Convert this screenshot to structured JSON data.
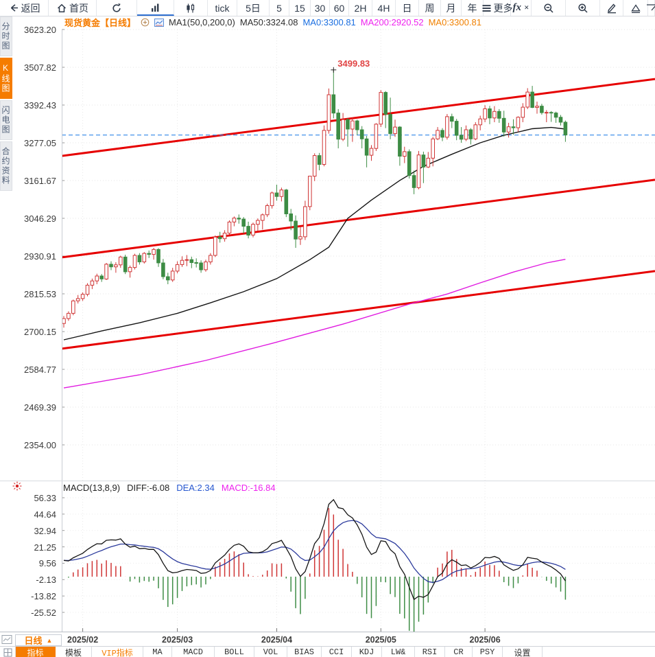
{
  "toolbar": {
    "items": [
      {
        "name": "back-button",
        "label": "返回",
        "icon": "back-arrow"
      },
      {
        "name": "home-button",
        "label": "首页",
        "icon": "home"
      },
      {
        "name": "refresh-button",
        "icon": "refresh"
      },
      {
        "name": "bar-chart-button",
        "icon": "bar-chart",
        "selected": true
      },
      {
        "name": "candle-chart-button",
        "icon": "candle-chart"
      },
      {
        "name": "tick-button",
        "label": "tick"
      },
      {
        "name": "period-5d-button",
        "label": "5日"
      },
      {
        "name": "period-5m-button",
        "label": "5"
      },
      {
        "name": "period-15m-button",
        "label": "15"
      },
      {
        "name": "period-30m-button",
        "label": "30"
      },
      {
        "name": "period-60m-button",
        "label": "60"
      },
      {
        "name": "period-2h-button",
        "label": "2H"
      },
      {
        "name": "period-4h-button",
        "label": "4H"
      },
      {
        "name": "period-day-button",
        "label": "日"
      },
      {
        "name": "period-week-button",
        "label": "周"
      },
      {
        "name": "period-month-button",
        "label": "月"
      },
      {
        "name": "period-year-button",
        "label": "年"
      },
      {
        "name": "more-button",
        "label": "更多",
        "icon": "menu"
      },
      {
        "name": "formula-button",
        "icon": "fx"
      },
      {
        "name": "zoom-out-button",
        "icon": "zoom-out"
      },
      {
        "name": "zoom-in-button",
        "icon": "zoom-in"
      },
      {
        "name": "draw-pencil-button",
        "icon": "pencil"
      },
      {
        "name": "draw-triangle-button",
        "icon": "triangle"
      },
      {
        "name": "draw-more-button",
        "icon": "partial-shape"
      }
    ]
  },
  "sidebar": {
    "tabs": [
      {
        "label": "分时图",
        "active": false
      },
      {
        "label": "K线图",
        "active": true
      },
      {
        "label": "闪电图",
        "active": false
      },
      {
        "label": "合约资料",
        "active": false
      }
    ]
  },
  "symbol_header": {
    "title": "现货黄金",
    "period_tag": "【日线】",
    "ma_settings": "MA1(50,0,200,0)",
    "ma50": "MA50:3324.08",
    "ma0_blue": "MA0:3300.81",
    "ma200": "MA200:2920.52",
    "ma0_orange": "MA0:3300.81"
  },
  "period_selector": {
    "label": "日线",
    "arrow": "▲"
  },
  "bottom_bar": {
    "items": [
      {
        "name": "indicator-tab",
        "label": "指标",
        "active": true
      },
      {
        "name": "template-tab",
        "label": "模板"
      },
      {
        "name": "vip-indicator-tab",
        "label": "VIP指标",
        "vip": true
      },
      {
        "name": "ma-tab",
        "label": "MA"
      },
      {
        "name": "macd-tab",
        "label": "MACD"
      },
      {
        "name": "boll-tab",
        "label": "BOLL"
      },
      {
        "name": "vol-tab",
        "label": "VOL"
      },
      {
        "name": "bias-tab",
        "label": "BIAS"
      },
      {
        "name": "cci-tab",
        "label": "CCI"
      },
      {
        "name": "kdj-tab",
        "label": "KDJ"
      },
      {
        "name": "lw-tab",
        "label": "LW&"
      },
      {
        "name": "rsi-tab",
        "label": "RSI"
      },
      {
        "name": "cr-tab",
        "label": "CR"
      },
      {
        "name": "psy-tab",
        "label": "PSY"
      },
      {
        "name": "settings-tab",
        "label": "设置"
      }
    ]
  },
  "colors": {
    "accent_orange": "#f57c00",
    "up_red": "#cf3434",
    "down_green": "#3d8c44",
    "trend_red": "#e60000",
    "ma50_black": "#141414",
    "ma200_magenta": "#e01ae0",
    "dea_blue": "#2b3a9c",
    "last_price_blue": "#2f86e8",
    "annotation_red": "#e04343",
    "grid": "#e4e4e4"
  },
  "chart_data": {
    "type": "candlestick",
    "symbol": "现货黄金",
    "period": "日线",
    "price_axis_labels": [
      "3623.20",
      "3507.82",
      "3392.43",
      "3277.05",
      "3161.67",
      "3046.29",
      "2930.91",
      "2815.53",
      "2700.15",
      "2584.77",
      "2469.39",
      "2354.00"
    ],
    "ylim": [
      2354.0,
      3623.2
    ],
    "x_labels": [
      "2025/02",
      "2025/03",
      "2025/04",
      "2025/05",
      "2025/06"
    ],
    "month_start_indices": [
      4,
      24,
      45,
      67,
      89
    ],
    "high_annotation": {
      "text": "3499.83",
      "price": 3499.83,
      "candle_index": 57
    },
    "last_price_line": 3300.81,
    "candles": [
      [
        2725,
        2748,
        2712,
        2740
      ],
      [
        2740,
        2762,
        2733,
        2756
      ],
      [
        2756,
        2798,
        2750,
        2794
      ],
      [
        2794,
        2812,
        2786,
        2801
      ],
      [
        2801,
        2820,
        2794,
        2814
      ],
      [
        2814,
        2848,
        2808,
        2842
      ],
      [
        2842,
        2862,
        2830,
        2855
      ],
      [
        2855,
        2877,
        2845,
        2870
      ],
      [
        2870,
        2876,
        2852,
        2861
      ],
      [
        2861,
        2910,
        2858,
        2906
      ],
      [
        2906,
        2915,
        2888,
        2898
      ],
      [
        2898,
        2912,
        2880,
        2904
      ],
      [
        2904,
        2932,
        2895,
        2928
      ],
      [
        2928,
        2935,
        2876,
        2883
      ],
      [
        2883,
        2902,
        2865,
        2896
      ],
      [
        2896,
        2938,
        2890,
        2933
      ],
      [
        2933,
        2940,
        2905,
        2913
      ],
      [
        2913,
        2943,
        2908,
        2939
      ],
      [
        2939,
        2948,
        2925,
        2936
      ],
      [
        2936,
        2956,
        2920,
        2951
      ],
      [
        2951,
        2955,
        2898,
        2910
      ],
      [
        2910,
        2922,
        2860,
        2868
      ],
      [
        2868,
        2880,
        2845,
        2858
      ],
      [
        2858,
        2895,
        2852,
        2885
      ],
      [
        2885,
        2915,
        2878,
        2905
      ],
      [
        2905,
        2930,
        2898,
        2918
      ],
      [
        2918,
        2934,
        2900,
        2920
      ],
      [
        2920,
        2929,
        2894,
        2911
      ],
      [
        2911,
        2924,
        2896,
        2910
      ],
      [
        2910,
        2918,
        2880,
        2889
      ],
      [
        2889,
        2920,
        2883,
        2913
      ],
      [
        2913,
        2940,
        2905,
        2933
      ],
      [
        2933,
        2994,
        2928,
        2989
      ],
      [
        2989,
        3005,
        2972,
        2984
      ],
      [
        2984,
        3010,
        2975,
        3001
      ],
      [
        3001,
        3040,
        2996,
        3035
      ],
      [
        3035,
        3052,
        3022,
        3047
      ],
      [
        3047,
        3058,
        3030,
        3044
      ],
      [
        3044,
        3050,
        3000,
        3022
      ],
      [
        3022,
        3036,
        2985,
        2995
      ],
      [
        2995,
        3033,
        2988,
        3028
      ],
      [
        3028,
        3046,
        3008,
        3040
      ],
      [
        3040,
        3061,
        3012,
        3057
      ],
      [
        3057,
        3091,
        3050,
        3085
      ],
      [
        3085,
        3128,
        3076,
        3124
      ],
      [
        3124,
        3149,
        3100,
        3113
      ],
      [
        3113,
        3140,
        3098,
        3133
      ],
      [
        3133,
        3136,
        3050,
        3060
      ],
      [
        3060,
        3075,
        3010,
        3038
      ],
      [
        3038,
        3055,
        2956,
        2983
      ],
      [
        2983,
        3022,
        2965,
        2990
      ],
      [
        2990,
        3100,
        2980,
        3082
      ],
      [
        3082,
        3176,
        3071,
        3175
      ],
      [
        3175,
        3245,
        3160,
        3238
      ],
      [
        3238,
        3246,
        3193,
        3211
      ],
      [
        3211,
        3330,
        3205,
        3315
      ],
      [
        3315,
        3443,
        3305,
        3424
      ],
      [
        3424,
        3499.83,
        3352,
        3368
      ],
      [
        3368,
        3380,
        3260,
        3288
      ],
      [
        3288,
        3368,
        3282,
        3348
      ],
      [
        3348,
        3352,
        3265,
        3319
      ],
      [
        3319,
        3355,
        3280,
        3344
      ],
      [
        3344,
        3348,
        3301,
        3317
      ],
      [
        3317,
        3328,
        3260,
        3289
      ],
      [
        3289,
        3298,
        3202,
        3239
      ],
      [
        3239,
        3270,
        3222,
        3260
      ],
      [
        3260,
        3337,
        3252,
        3334
      ],
      [
        3334,
        3438,
        3325,
        3431
      ],
      [
        3431,
        3435,
        3322,
        3364
      ],
      [
        3364,
        3415,
        3288,
        3305
      ],
      [
        3305,
        3348,
        3295,
        3325
      ],
      [
        3325,
        3328,
        3207,
        3236
      ],
      [
        3236,
        3265,
        3215,
        3250
      ],
      [
        3250,
        3257,
        3168,
        3177
      ],
      [
        3177,
        3192,
        3120,
        3140
      ],
      [
        3140,
        3252,
        3135,
        3240
      ],
      [
        3240,
        3250,
        3154,
        3203
      ],
      [
        3203,
        3249,
        3200,
        3230
      ],
      [
        3230,
        3295,
        3205,
        3289
      ],
      [
        3289,
        3325,
        3285,
        3315
      ],
      [
        3315,
        3322,
        3282,
        3294
      ],
      [
        3294,
        3365,
        3287,
        3357
      ],
      [
        3357,
        3366,
        3322,
        3343
      ],
      [
        3343,
        3350,
        3285,
        3300
      ],
      [
        3300,
        3325,
        3277,
        3288
      ],
      [
        3288,
        3330,
        3282,
        3317
      ],
      [
        3317,
        3322,
        3272,
        3289
      ],
      [
        3289,
        3340,
        3285,
        3332
      ],
      [
        3332,
        3360,
        3315,
        3350
      ],
      [
        3350,
        3392,
        3340,
        3381
      ],
      [
        3381,
        3390,
        3334,
        3353
      ],
      [
        3353,
        3389,
        3340,
        3373
      ],
      [
        3373,
        3380,
        3338,
        3352
      ],
      [
        3352,
        3375,
        3296,
        3310
      ],
      [
        3310,
        3338,
        3293,
        3326
      ],
      [
        3326,
        3349,
        3302,
        3323
      ],
      [
        3323,
        3358,
        3310,
        3355
      ],
      [
        3355,
        3398,
        3340,
        3386
      ],
      [
        3386,
        3444,
        3380,
        3432
      ],
      [
        3432,
        3451,
        3383,
        3385
      ],
      [
        3385,
        3403,
        3366,
        3389
      ],
      [
        3389,
        3396,
        3363,
        3369
      ],
      [
        3369,
        3377,
        3340,
        3370
      ],
      [
        3370,
        3374,
        3341,
        3368
      ],
      [
        3368,
        3372,
        3338,
        3355
      ],
      [
        3355,
        3362,
        3330,
        3340
      ],
      [
        3340,
        3345,
        3280,
        3301
      ]
    ],
    "ma50_points": [
      [
        0,
        2675
      ],
      [
        8,
        2702
      ],
      [
        16,
        2727
      ],
      [
        24,
        2756
      ],
      [
        31,
        2788
      ],
      [
        38,
        2822
      ],
      [
        45,
        2862
      ],
      [
        52,
        2920
      ],
      [
        56,
        2958
      ],
      [
        60,
        3046
      ],
      [
        65,
        3102
      ],
      [
        71,
        3162
      ],
      [
        76,
        3205
      ],
      [
        82,
        3242
      ],
      [
        88,
        3277
      ],
      [
        93,
        3300
      ],
      [
        99,
        3320
      ],
      [
        103,
        3324
      ],
      [
        106,
        3319
      ]
    ],
    "ma200_points": [
      [
        0,
        2528
      ],
      [
        16,
        2568
      ],
      [
        30,
        2612
      ],
      [
        44,
        2664
      ],
      [
        59,
        2723
      ],
      [
        73,
        2784
      ],
      [
        81,
        2815
      ],
      [
        88,
        2849
      ],
      [
        95,
        2882
      ],
      [
        102,
        2910
      ],
      [
        106,
        2921
      ]
    ],
    "trend_channel_lines": [
      {
        "price_left": 3237,
        "price_right": 3472
      },
      {
        "price_left": 2927,
        "price_right": 3164
      },
      {
        "price_left": 2648,
        "price_right": 2885
      }
    ],
    "macd": {
      "label": "MACD(13,8,9)",
      "diff_label": "DIFF:-6.08",
      "dea_label": "DEA:2.34",
      "macd_label": "MACD:-16.84",
      "diff_value": -6.08,
      "dea_value": 2.34,
      "macd_value": -16.84,
      "axis_labels": [
        "56.33",
        "44.64",
        "32.94",
        "21.25",
        "9.56",
        "-2.13",
        "-13.82",
        "-25.52"
      ]
    }
  }
}
